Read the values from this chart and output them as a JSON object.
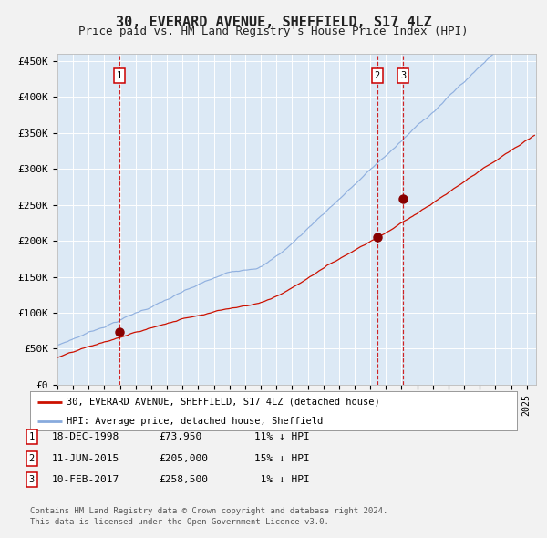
{
  "title": "30, EVERARD AVENUE, SHEFFIELD, S17 4LZ",
  "subtitle": "Price paid vs. HM Land Registry's House Price Index (HPI)",
  "title_fontsize": 11,
  "subtitle_fontsize": 9,
  "bg_color": "#dce9f5",
  "fig_bg_color": "#f2f2f2",
  "grid_color": "#ffffff",
  "ylim": [
    0,
    460000
  ],
  "xlim_start": 1995.0,
  "xlim_end": 2025.6,
  "sale_dates": [
    1998.96,
    2015.44,
    2017.11
  ],
  "sale_prices": [
    73950,
    205000,
    258500
  ],
  "sale_labels": [
    "1",
    "2",
    "3"
  ],
  "vline_color": "#cc0000",
  "dot_color": "#880000",
  "legend_label_red": "30, EVERARD AVENUE, SHEFFIELD, S17 4LZ (detached house)",
  "legend_label_blue": "HPI: Average price, detached house, Sheffield",
  "red_line_color": "#cc1100",
  "blue_line_color": "#88aadd",
  "footer_line1": "Contains HM Land Registry data © Crown copyright and database right 2024.",
  "footer_line2": "This data is licensed under the Open Government Licence v3.0.",
  "table_rows": [
    {
      "label": "1",
      "date": "18-DEC-1998",
      "price": "£73,950",
      "hpi": "11% ↓ HPI"
    },
    {
      "label": "2",
      "date": "11-JUN-2015",
      "price": "£205,000",
      "hpi": "15% ↓ HPI"
    },
    {
      "label": "3",
      "date": "10-FEB-2017",
      "price": "£258,500",
      "hpi": " 1% ↓ HPI"
    }
  ]
}
